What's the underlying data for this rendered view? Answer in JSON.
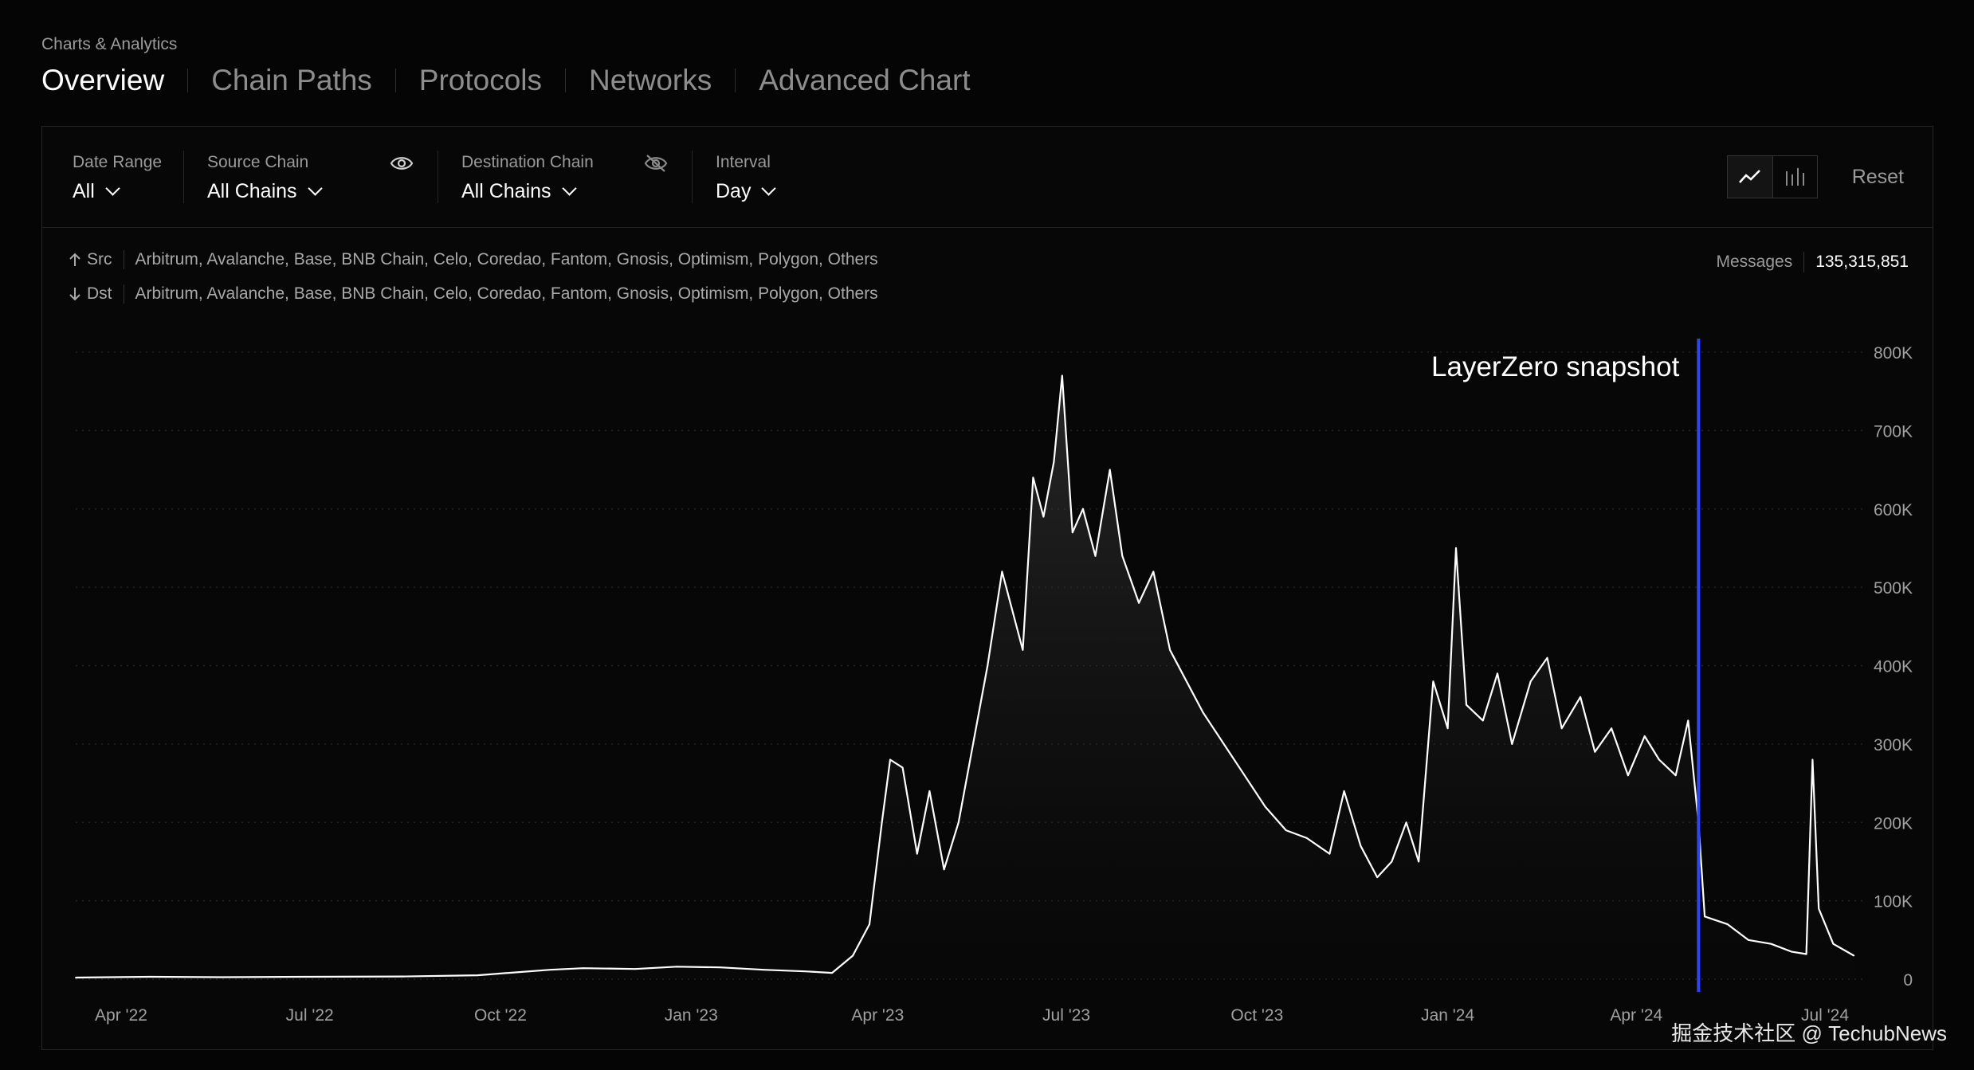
{
  "breadcrumb": "Charts & Analytics",
  "tabs": [
    {
      "label": "Overview",
      "active": true
    },
    {
      "label": "Chain Paths",
      "active": false
    },
    {
      "label": "Protocols",
      "active": false
    },
    {
      "label": "Networks",
      "active": false
    },
    {
      "label": "Advanced Chart",
      "active": false
    }
  ],
  "filters": {
    "date_range": {
      "label": "Date Range",
      "value": "All"
    },
    "source_chain": {
      "label": "Source Chain",
      "value": "All Chains",
      "icon": "eye-icon"
    },
    "destination_chain": {
      "label": "Destination Chain",
      "value": "All Chains",
      "icon": "eye-off-icon"
    },
    "interval": {
      "label": "Interval",
      "value": "Day"
    }
  },
  "toolbar": {
    "line_icon": "line-chart-icon",
    "bar_icon": "bar-chart-icon",
    "reset_label": "Reset"
  },
  "src": {
    "label": "Src",
    "chains": "Arbitrum, Avalanche, Base, BNB Chain, Celo, Coredao, Fantom, Gnosis, Optimism, Polygon, Others"
  },
  "dst": {
    "label": "Dst",
    "chains": "Arbitrum, Avalanche, Base, BNB Chain, Celo, Coredao, Fantom, Gnosis, Optimism, Polygon, Others"
  },
  "messages": {
    "label": "Messages",
    "value": "135,315,851"
  },
  "watermark": "掘金技术社区 @ TechubNews",
  "colors": {
    "background": "#050505",
    "line": "#ffffff",
    "annotation": "#2b45ff"
  },
  "chart_data": {
    "type": "area",
    "title": "",
    "xlabel": "",
    "ylabel": "",
    "x_ticks": [
      "Apr '22",
      "Jul '22",
      "Oct '22",
      "Jan '23",
      "Apr '23",
      "Jul '23",
      "Oct '23",
      "Jan '24",
      "Apr '24",
      "Jul '24"
    ],
    "y_ticks": [
      "0",
      "100K",
      "200K",
      "300K",
      "400K",
      "500K",
      "600K",
      "700K",
      "800K"
    ],
    "ylim": [
      0,
      800000
    ],
    "grid": "horizontal dotted",
    "annotation": {
      "label": "LayerZero snapshot",
      "date": "2024-05-01"
    },
    "series": [
      {
        "values": [
          [
            "2022-03-10",
            2000
          ],
          [
            "2022-04-15",
            3000
          ],
          [
            "2022-05-20",
            2500
          ],
          [
            "2022-07-01",
            3000
          ],
          [
            "2022-08-15",
            3500
          ],
          [
            "2022-09-20",
            5000
          ],
          [
            "2022-10-05",
            8000
          ],
          [
            "2022-10-25",
            12000
          ],
          [
            "2022-11-10",
            14000
          ],
          [
            "2022-12-05",
            13000
          ],
          [
            "2022-12-25",
            16000
          ],
          [
            "2023-01-15",
            15000
          ],
          [
            "2023-02-05",
            12000
          ],
          [
            "2023-02-25",
            10000
          ],
          [
            "2023-03-10",
            8000
          ],
          [
            "2023-03-20",
            30000
          ],
          [
            "2023-03-28",
            70000
          ],
          [
            "2023-04-03",
            200000
          ],
          [
            "2023-04-07",
            280000
          ],
          [
            "2023-04-13",
            270000
          ],
          [
            "2023-04-20",
            160000
          ],
          [
            "2023-04-26",
            240000
          ],
          [
            "2023-05-03",
            140000
          ],
          [
            "2023-05-10",
            200000
          ],
          [
            "2023-05-17",
            300000
          ],
          [
            "2023-05-24",
            400000
          ],
          [
            "2023-05-31",
            520000
          ],
          [
            "2023-06-05",
            470000
          ],
          [
            "2023-06-10",
            420000
          ],
          [
            "2023-06-15",
            640000
          ],
          [
            "2023-06-20",
            590000
          ],
          [
            "2023-06-25",
            660000
          ],
          [
            "2023-06-29",
            770000
          ],
          [
            "2023-07-04",
            570000
          ],
          [
            "2023-07-09",
            600000
          ],
          [
            "2023-07-15",
            540000
          ],
          [
            "2023-07-22",
            650000
          ],
          [
            "2023-07-28",
            540000
          ],
          [
            "2023-08-05",
            480000
          ],
          [
            "2023-08-12",
            520000
          ],
          [
            "2023-08-20",
            420000
          ],
          [
            "2023-08-28",
            380000
          ],
          [
            "2023-09-05",
            340000
          ],
          [
            "2023-09-15",
            300000
          ],
          [
            "2023-09-25",
            260000
          ],
          [
            "2023-10-05",
            220000
          ],
          [
            "2023-10-15",
            190000
          ],
          [
            "2023-10-25",
            180000
          ],
          [
            "2023-11-05",
            160000
          ],
          [
            "2023-11-12",
            240000
          ],
          [
            "2023-11-20",
            170000
          ],
          [
            "2023-11-28",
            130000
          ],
          [
            "2023-12-05",
            150000
          ],
          [
            "2023-12-12",
            200000
          ],
          [
            "2023-12-18",
            150000
          ],
          [
            "2023-12-25",
            380000
          ],
          [
            "2024-01-01",
            320000
          ],
          [
            "2024-01-05",
            550000
          ],
          [
            "2024-01-10",
            350000
          ],
          [
            "2024-01-18",
            330000
          ],
          [
            "2024-01-25",
            390000
          ],
          [
            "2024-02-01",
            300000
          ],
          [
            "2024-02-10",
            380000
          ],
          [
            "2024-02-18",
            410000
          ],
          [
            "2024-02-25",
            320000
          ],
          [
            "2024-03-05",
            360000
          ],
          [
            "2024-03-12",
            290000
          ],
          [
            "2024-03-20",
            320000
          ],
          [
            "2024-03-28",
            260000
          ],
          [
            "2024-04-05",
            310000
          ],
          [
            "2024-04-12",
            280000
          ],
          [
            "2024-04-20",
            260000
          ],
          [
            "2024-04-26",
            330000
          ],
          [
            "2024-05-01",
            200000
          ],
          [
            "2024-05-04",
            80000
          ],
          [
            "2024-05-15",
            70000
          ],
          [
            "2024-05-25",
            50000
          ],
          [
            "2024-06-05",
            45000
          ],
          [
            "2024-06-15",
            35000
          ],
          [
            "2024-06-22",
            32000
          ],
          [
            "2024-06-25",
            280000
          ],
          [
            "2024-06-28",
            90000
          ],
          [
            "2024-07-05",
            45000
          ],
          [
            "2024-07-15",
            30000
          ]
        ]
      }
    ]
  }
}
